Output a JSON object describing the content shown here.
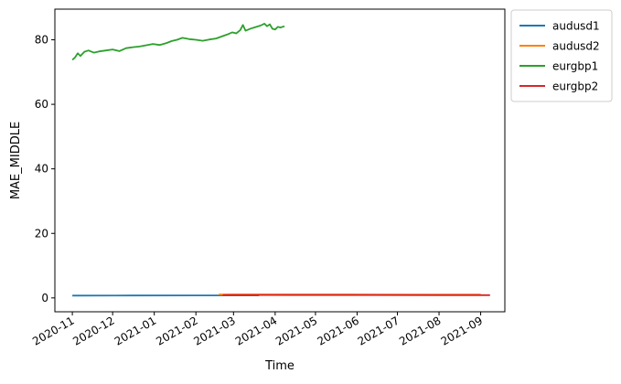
{
  "chart_data": {
    "type": "line",
    "title": "",
    "xlabel": "Time",
    "ylabel": "MAE_MIDDLE",
    "x_range": [
      "2020-10-19",
      "2021-09-19"
    ],
    "ylim": [
      -4.3,
      89.5
    ],
    "x_ticks": [
      "2020-11",
      "2020-12",
      "2021-01",
      "2021-02",
      "2021-03",
      "2021-04",
      "2021-05",
      "2021-06",
      "2021-07",
      "2021-08",
      "2021-09"
    ],
    "x_tick_dates": [
      "2020-11-01",
      "2020-12-01",
      "2021-01-01",
      "2021-02-01",
      "2021-03-01",
      "2021-04-01",
      "2021-05-01",
      "2021-06-01",
      "2021-07-01",
      "2021-08-01",
      "2021-09-01"
    ],
    "y_ticks": [
      0,
      20,
      40,
      60,
      80
    ],
    "grid": false,
    "legend_position": "outside top-right",
    "series": [
      {
        "name": "audusd1",
        "color": "#1f77b4",
        "points": [
          [
            "2020-11-01",
            0.72
          ],
          [
            "2020-12-15",
            0.75
          ],
          [
            "2021-02-01",
            0.77
          ],
          [
            "2021-03-20",
            0.77
          ]
        ]
      },
      {
        "name": "audusd2",
        "color": "#ff7f0e",
        "points": [
          [
            "2021-02-18",
            1.05
          ],
          [
            "2021-04-15",
            1.08
          ],
          [
            "2021-06-15",
            1.07
          ],
          [
            "2021-09-01",
            1.06
          ]
        ]
      },
      {
        "name": "eurgbp1",
        "color": "#2ca02c",
        "points": [
          [
            "2020-11-01",
            73.8
          ],
          [
            "2020-11-03",
            74.5
          ],
          [
            "2020-11-05",
            75.8
          ],
          [
            "2020-11-07",
            75.0
          ],
          [
            "2020-11-10",
            76.3
          ],
          [
            "2020-11-13",
            76.7
          ],
          [
            "2020-11-17",
            76.0
          ],
          [
            "2020-11-21",
            76.4
          ],
          [
            "2020-11-26",
            76.7
          ],
          [
            "2020-12-01",
            77.0
          ],
          [
            "2020-12-06",
            76.5
          ],
          [
            "2020-12-11",
            77.4
          ],
          [
            "2020-12-16",
            77.7
          ],
          [
            "2020-12-21",
            77.9
          ],
          [
            "2020-12-26",
            78.3
          ],
          [
            "2020-12-31",
            78.7
          ],
          [
            "2021-01-05",
            78.4
          ],
          [
            "2021-01-10",
            79.0
          ],
          [
            "2021-01-14",
            79.6
          ],
          [
            "2021-01-18",
            80.0
          ],
          [
            "2021-01-22",
            80.6
          ],
          [
            "2021-01-27",
            80.2
          ],
          [
            "2021-02-01",
            80.0
          ],
          [
            "2021-02-06",
            79.7
          ],
          [
            "2021-02-11",
            80.1
          ],
          [
            "2021-02-16",
            80.4
          ],
          [
            "2021-02-20",
            81.0
          ],
          [
            "2021-02-24",
            81.6
          ],
          [
            "2021-02-28",
            82.3
          ],
          [
            "2021-03-03",
            82.0
          ],
          [
            "2021-03-06",
            83.0
          ],
          [
            "2021-03-08",
            84.6
          ],
          [
            "2021-03-10",
            82.8
          ],
          [
            "2021-03-14",
            83.5
          ],
          [
            "2021-03-18",
            84.0
          ],
          [
            "2021-03-21",
            84.4
          ],
          [
            "2021-03-24",
            85.0
          ],
          [
            "2021-03-26",
            84.2
          ],
          [
            "2021-03-28",
            84.8
          ],
          [
            "2021-03-30",
            83.4
          ],
          [
            "2021-04-01",
            83.2
          ],
          [
            "2021-04-03",
            84.0
          ],
          [
            "2021-04-05",
            83.8
          ],
          [
            "2021-04-08",
            84.2
          ]
        ]
      },
      {
        "name": "eurgbp2",
        "color": "#d62728",
        "points": [
          [
            "2021-02-21",
            0.92
          ],
          [
            "2021-04-15",
            0.9
          ],
          [
            "2021-06-15",
            0.88
          ],
          [
            "2021-08-01",
            0.87
          ],
          [
            "2021-09-08",
            0.85
          ]
        ]
      }
    ]
  }
}
